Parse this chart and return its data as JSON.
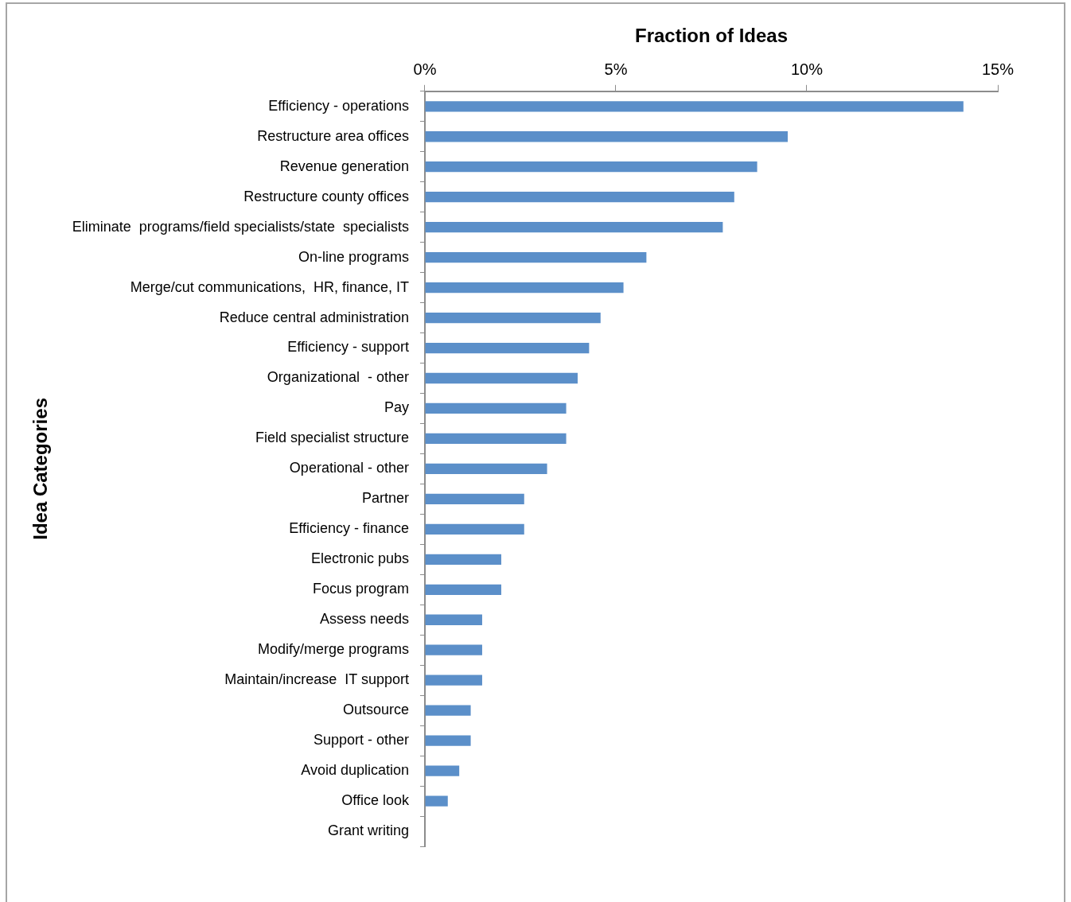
{
  "chart_data": {
    "type": "bar",
    "orientation": "horizontal",
    "xlabel": "Fraction of Ideas",
    "ylabel": "Idea Categories",
    "categories": [
      "Efficiency - operations",
      "Restructure area offices",
      "Revenue generation",
      "Restructure county offices",
      "Eliminate  programs/field specialists/state  specialists",
      "On-line programs",
      "Merge/cut communications,  HR, finance, IT",
      "Reduce central administration",
      "Efficiency - support",
      "Organizational  - other",
      "Pay",
      "Field specialist structure",
      "Operational - other",
      "Partner",
      "Efficiency - finance",
      "Electronic pubs",
      "Focus program",
      "Assess needs",
      "Modify/merge programs",
      "Maintain/increase  IT support",
      "Outsource",
      "Support - other",
      "Avoid duplication",
      "Office look",
      "Grant writing"
    ],
    "values": [
      14.1,
      9.5,
      8.7,
      8.1,
      7.8,
      5.8,
      5.2,
      4.6,
      4.3,
      4.0,
      3.7,
      3.7,
      3.2,
      2.6,
      2.6,
      2.0,
      2.0,
      1.5,
      1.5,
      1.5,
      1.2,
      1.2,
      0.9,
      0.6,
      0
    ],
    "color": "#5b8fc9",
    "xlim": [
      0,
      15
    ],
    "xticks": [
      {
        "value": 0,
        "label": "0%"
      },
      {
        "value": 5,
        "label": "5%"
      },
      {
        "value": 10,
        "label": "10%"
      },
      {
        "value": 15,
        "label": "15%"
      }
    ],
    "grid": false,
    "legend": false
  }
}
